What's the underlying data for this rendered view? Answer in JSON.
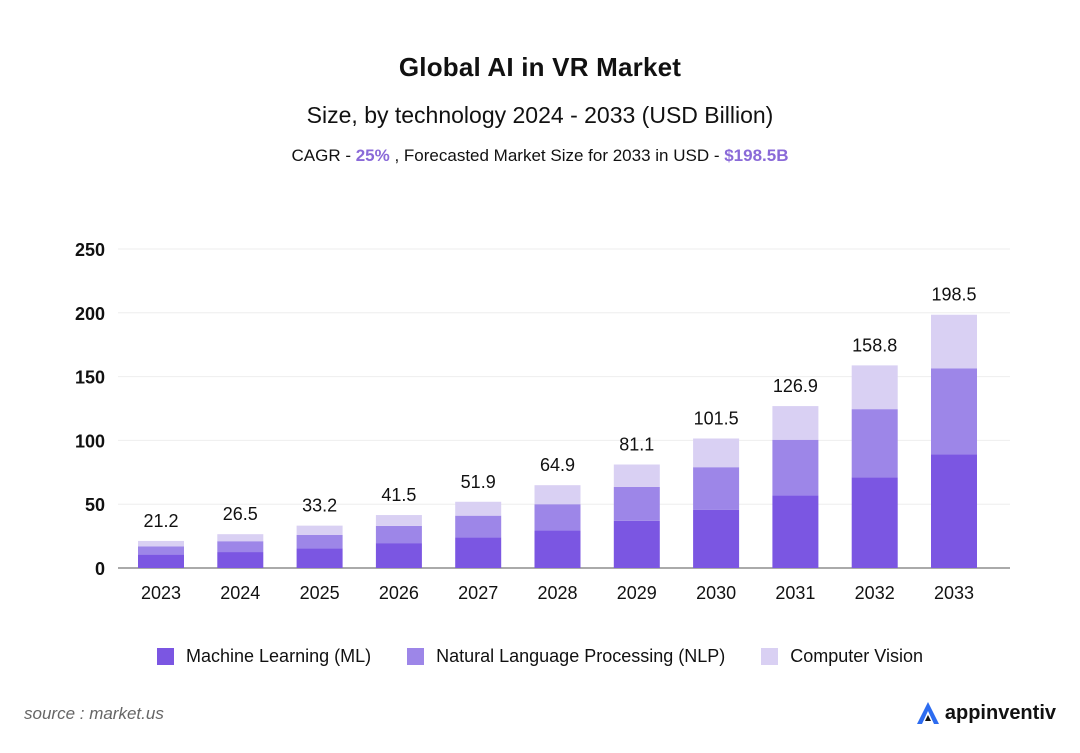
{
  "title": "Global AI in VR Market",
  "subtitle": "Size, by technology 2024 - 2033 (USD Billion)",
  "cagr": {
    "label": "CAGR - ",
    "value": "25%",
    "mid": " , Forecasted Market Size for 2033 in USD - ",
    "forecast": "$198.5B"
  },
  "colors": {
    "ml": "#7b56e2",
    "nlp": "#9d86e8",
    "cv": "#d9d0f3",
    "accent": "#8a6ad8",
    "grid": "#eeeeee"
  },
  "chart_data": {
    "type": "bar",
    "stacked": true,
    "categories": [
      "2023",
      "2024",
      "2025",
      "2026",
      "2027",
      "2028",
      "2029",
      "2030",
      "2031",
      "2032",
      "2033"
    ],
    "series": [
      {
        "name": "Machine Learning (ML)",
        "values": [
          10.5,
          12.5,
          15.5,
          19.5,
          24,
          29.5,
          37,
          45.5,
          57,
          71,
          89
        ]
      },
      {
        "name": "Natural Language Processing (NLP)",
        "values": [
          6.5,
          8.5,
          10.5,
          13.5,
          17,
          20.5,
          26.5,
          33.5,
          43.5,
          53.5,
          67.5
        ]
      },
      {
        "name": "Computer Vision",
        "values": [
          4.2,
          5.5,
          7.2,
          8.5,
          10.9,
          14.9,
          17.6,
          22.5,
          26.4,
          34.3,
          42
        ]
      }
    ],
    "totals": [
      "21.2",
      "26.5",
      "33.2",
      "41.5",
      "51.9",
      "64.9",
      "81.1",
      "101.5",
      "126.9",
      "158.8",
      "198.5"
    ],
    "y_ticks": [
      "0",
      "50",
      "100",
      "150",
      "200",
      "250"
    ],
    "ylim": [
      0,
      250
    ],
    "title": "Global AI in VR Market",
    "xlabel": "",
    "ylabel": "",
    "legend": "bottom",
    "grid": true
  },
  "legend": {
    "items": [
      {
        "label": "Machine Learning (ML)"
      },
      {
        "label": "Natural Language Processing (NLP)"
      },
      {
        "label": "Computer Vision"
      }
    ]
  },
  "footer": {
    "source": "source : market.us",
    "brand": "appinventiv"
  }
}
